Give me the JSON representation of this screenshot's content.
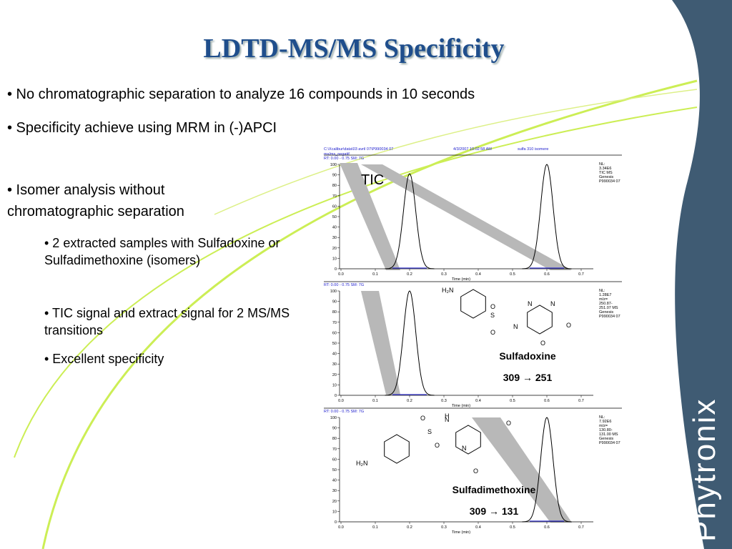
{
  "title": "LDTD-MS/MS Specificity",
  "bullets": [
    "• No chromatographic separation to analyze 16 compounds in 10 seconds",
    "• Specificity achieve using MRM in (-)APCI",
    "• Isomer analysis without chromatographic separation"
  ],
  "sub_bullets": [
    "• 2 extracted samples with Sulfadoxine or Sulfadimethoxine (isomers)",
    "• TIC signal and extract signal for 2 MS/MS transitions",
    "• Excellent specificity"
  ],
  "chromatograms": {
    "header": {
      "file": "C:\\Xcalibur\\data\\03 avril 07\\P990034 07",
      "scan": "ms/ms_negatif",
      "date": "4/3/2007 10:02:58 AM",
      "description": "sulfa 310 isomere"
    },
    "xlim": [
      0,
      0.75
    ],
    "ylim": [
      0,
      100
    ],
    "xticks": [
      {
        "value": 0,
        "label": "0.0"
      },
      0.1,
      0.2,
      0.3,
      0.4,
      0.5,
      0.6,
      0.7
    ],
    "yticks": [
      0,
      10,
      20,
      30,
      40,
      50,
      60,
      70,
      80,
      90,
      100
    ],
    "xlabel": "Time (min)",
    "panels": [
      {
        "range": "RT: 0.00 - 0.75  SM: 7G",
        "info": [
          "NL:",
          "3.34E6",
          "TIC  MS",
          "Genesis",
          "P990034 07"
        ],
        "label": "TIC",
        "peaks": {
          "x": [
            0.2,
            0.6
          ],
          "values": [
            91,
            100
          ]
        }
      },
      {
        "range": "RT: 0.00 - 0.75  SM: 7G",
        "info": [
          "NL:",
          "1.28E7",
          "m/z=",
          "250.87-",
          "251.07  MS",
          " Genesis",
          "P990034 07"
        ],
        "peaks": {
          "x": [
            0.2
          ],
          "values": [
            100
          ]
        }
      },
      {
        "range": "RT: 0.00 - 0.75  SM: 7G",
        "info": [
          "NL:",
          "7.92E6",
          "m/z=",
          "130.80-",
          "131.00  MS",
          " Genesis",
          "P990034 07"
        ],
        "peaks": {
          "x": [
            0.6
          ],
          "values": [
            100
          ]
        }
      }
    ]
  },
  "compounds": [
    {
      "name": "Sulfadoxine",
      "transition": "309 → 251",
      "atoms": [
        "H₂N",
        "S",
        "O",
        "O",
        "N",
        "N",
        "N",
        "O",
        "O"
      ]
    },
    {
      "name": "Sulfadimethoxine",
      "transition": "309 → 131",
      "atoms": [
        "H₂N",
        "S",
        "O",
        "O",
        "N",
        "H",
        "N",
        "O",
        "O"
      ]
    }
  ],
  "logo": "Phytronix"
}
